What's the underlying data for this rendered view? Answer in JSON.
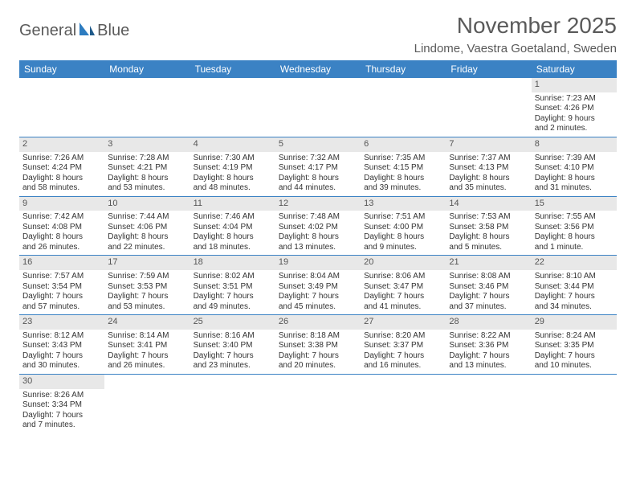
{
  "brand": {
    "name_part1": "General",
    "name_part2": "Blue"
  },
  "title": "November 2025",
  "location": "Lindome, Vaestra Goetaland, Sweden",
  "colors": {
    "header_bg": "#3b82c4",
    "header_text": "#ffffff",
    "daynum_bg": "#e8e8e8",
    "row_border": "#3b82c4",
    "title_color": "#5a5a5a",
    "body_text": "#333333"
  },
  "day_headers": [
    "Sunday",
    "Monday",
    "Tuesday",
    "Wednesday",
    "Thursday",
    "Friday",
    "Saturday"
  ],
  "weeks": [
    [
      {
        "empty": true
      },
      {
        "empty": true
      },
      {
        "empty": true
      },
      {
        "empty": true
      },
      {
        "empty": true
      },
      {
        "empty": true
      },
      {
        "num": "1",
        "sunrise": "Sunrise: 7:23 AM",
        "sunset": "Sunset: 4:26 PM",
        "daylight1": "Daylight: 9 hours",
        "daylight2": "and 2 minutes."
      }
    ],
    [
      {
        "num": "2",
        "sunrise": "Sunrise: 7:26 AM",
        "sunset": "Sunset: 4:24 PM",
        "daylight1": "Daylight: 8 hours",
        "daylight2": "and 58 minutes."
      },
      {
        "num": "3",
        "sunrise": "Sunrise: 7:28 AM",
        "sunset": "Sunset: 4:21 PM",
        "daylight1": "Daylight: 8 hours",
        "daylight2": "and 53 minutes."
      },
      {
        "num": "4",
        "sunrise": "Sunrise: 7:30 AM",
        "sunset": "Sunset: 4:19 PM",
        "daylight1": "Daylight: 8 hours",
        "daylight2": "and 48 minutes."
      },
      {
        "num": "5",
        "sunrise": "Sunrise: 7:32 AM",
        "sunset": "Sunset: 4:17 PM",
        "daylight1": "Daylight: 8 hours",
        "daylight2": "and 44 minutes."
      },
      {
        "num": "6",
        "sunrise": "Sunrise: 7:35 AM",
        "sunset": "Sunset: 4:15 PM",
        "daylight1": "Daylight: 8 hours",
        "daylight2": "and 39 minutes."
      },
      {
        "num": "7",
        "sunrise": "Sunrise: 7:37 AM",
        "sunset": "Sunset: 4:13 PM",
        "daylight1": "Daylight: 8 hours",
        "daylight2": "and 35 minutes."
      },
      {
        "num": "8",
        "sunrise": "Sunrise: 7:39 AM",
        "sunset": "Sunset: 4:10 PM",
        "daylight1": "Daylight: 8 hours",
        "daylight2": "and 31 minutes."
      }
    ],
    [
      {
        "num": "9",
        "sunrise": "Sunrise: 7:42 AM",
        "sunset": "Sunset: 4:08 PM",
        "daylight1": "Daylight: 8 hours",
        "daylight2": "and 26 minutes."
      },
      {
        "num": "10",
        "sunrise": "Sunrise: 7:44 AM",
        "sunset": "Sunset: 4:06 PM",
        "daylight1": "Daylight: 8 hours",
        "daylight2": "and 22 minutes."
      },
      {
        "num": "11",
        "sunrise": "Sunrise: 7:46 AM",
        "sunset": "Sunset: 4:04 PM",
        "daylight1": "Daylight: 8 hours",
        "daylight2": "and 18 minutes."
      },
      {
        "num": "12",
        "sunrise": "Sunrise: 7:48 AM",
        "sunset": "Sunset: 4:02 PM",
        "daylight1": "Daylight: 8 hours",
        "daylight2": "and 13 minutes."
      },
      {
        "num": "13",
        "sunrise": "Sunrise: 7:51 AM",
        "sunset": "Sunset: 4:00 PM",
        "daylight1": "Daylight: 8 hours",
        "daylight2": "and 9 minutes."
      },
      {
        "num": "14",
        "sunrise": "Sunrise: 7:53 AM",
        "sunset": "Sunset: 3:58 PM",
        "daylight1": "Daylight: 8 hours",
        "daylight2": "and 5 minutes."
      },
      {
        "num": "15",
        "sunrise": "Sunrise: 7:55 AM",
        "sunset": "Sunset: 3:56 PM",
        "daylight1": "Daylight: 8 hours",
        "daylight2": "and 1 minute."
      }
    ],
    [
      {
        "num": "16",
        "sunrise": "Sunrise: 7:57 AM",
        "sunset": "Sunset: 3:54 PM",
        "daylight1": "Daylight: 7 hours",
        "daylight2": "and 57 minutes."
      },
      {
        "num": "17",
        "sunrise": "Sunrise: 7:59 AM",
        "sunset": "Sunset: 3:53 PM",
        "daylight1": "Daylight: 7 hours",
        "daylight2": "and 53 minutes."
      },
      {
        "num": "18",
        "sunrise": "Sunrise: 8:02 AM",
        "sunset": "Sunset: 3:51 PM",
        "daylight1": "Daylight: 7 hours",
        "daylight2": "and 49 minutes."
      },
      {
        "num": "19",
        "sunrise": "Sunrise: 8:04 AM",
        "sunset": "Sunset: 3:49 PM",
        "daylight1": "Daylight: 7 hours",
        "daylight2": "and 45 minutes."
      },
      {
        "num": "20",
        "sunrise": "Sunrise: 8:06 AM",
        "sunset": "Sunset: 3:47 PM",
        "daylight1": "Daylight: 7 hours",
        "daylight2": "and 41 minutes."
      },
      {
        "num": "21",
        "sunrise": "Sunrise: 8:08 AM",
        "sunset": "Sunset: 3:46 PM",
        "daylight1": "Daylight: 7 hours",
        "daylight2": "and 37 minutes."
      },
      {
        "num": "22",
        "sunrise": "Sunrise: 8:10 AM",
        "sunset": "Sunset: 3:44 PM",
        "daylight1": "Daylight: 7 hours",
        "daylight2": "and 34 minutes."
      }
    ],
    [
      {
        "num": "23",
        "sunrise": "Sunrise: 8:12 AM",
        "sunset": "Sunset: 3:43 PM",
        "daylight1": "Daylight: 7 hours",
        "daylight2": "and 30 minutes."
      },
      {
        "num": "24",
        "sunrise": "Sunrise: 8:14 AM",
        "sunset": "Sunset: 3:41 PM",
        "daylight1": "Daylight: 7 hours",
        "daylight2": "and 26 minutes."
      },
      {
        "num": "25",
        "sunrise": "Sunrise: 8:16 AM",
        "sunset": "Sunset: 3:40 PM",
        "daylight1": "Daylight: 7 hours",
        "daylight2": "and 23 minutes."
      },
      {
        "num": "26",
        "sunrise": "Sunrise: 8:18 AM",
        "sunset": "Sunset: 3:38 PM",
        "daylight1": "Daylight: 7 hours",
        "daylight2": "and 20 minutes."
      },
      {
        "num": "27",
        "sunrise": "Sunrise: 8:20 AM",
        "sunset": "Sunset: 3:37 PM",
        "daylight1": "Daylight: 7 hours",
        "daylight2": "and 16 minutes."
      },
      {
        "num": "28",
        "sunrise": "Sunrise: 8:22 AM",
        "sunset": "Sunset: 3:36 PM",
        "daylight1": "Daylight: 7 hours",
        "daylight2": "and 13 minutes."
      },
      {
        "num": "29",
        "sunrise": "Sunrise: 8:24 AM",
        "sunset": "Sunset: 3:35 PM",
        "daylight1": "Daylight: 7 hours",
        "daylight2": "and 10 minutes."
      }
    ],
    [
      {
        "num": "30",
        "sunrise": "Sunrise: 8:26 AM",
        "sunset": "Sunset: 3:34 PM",
        "daylight1": "Daylight: 7 hours",
        "daylight2": "and 7 minutes."
      },
      {
        "empty": true
      },
      {
        "empty": true
      },
      {
        "empty": true
      },
      {
        "empty": true
      },
      {
        "empty": true
      },
      {
        "empty": true
      }
    ]
  ]
}
